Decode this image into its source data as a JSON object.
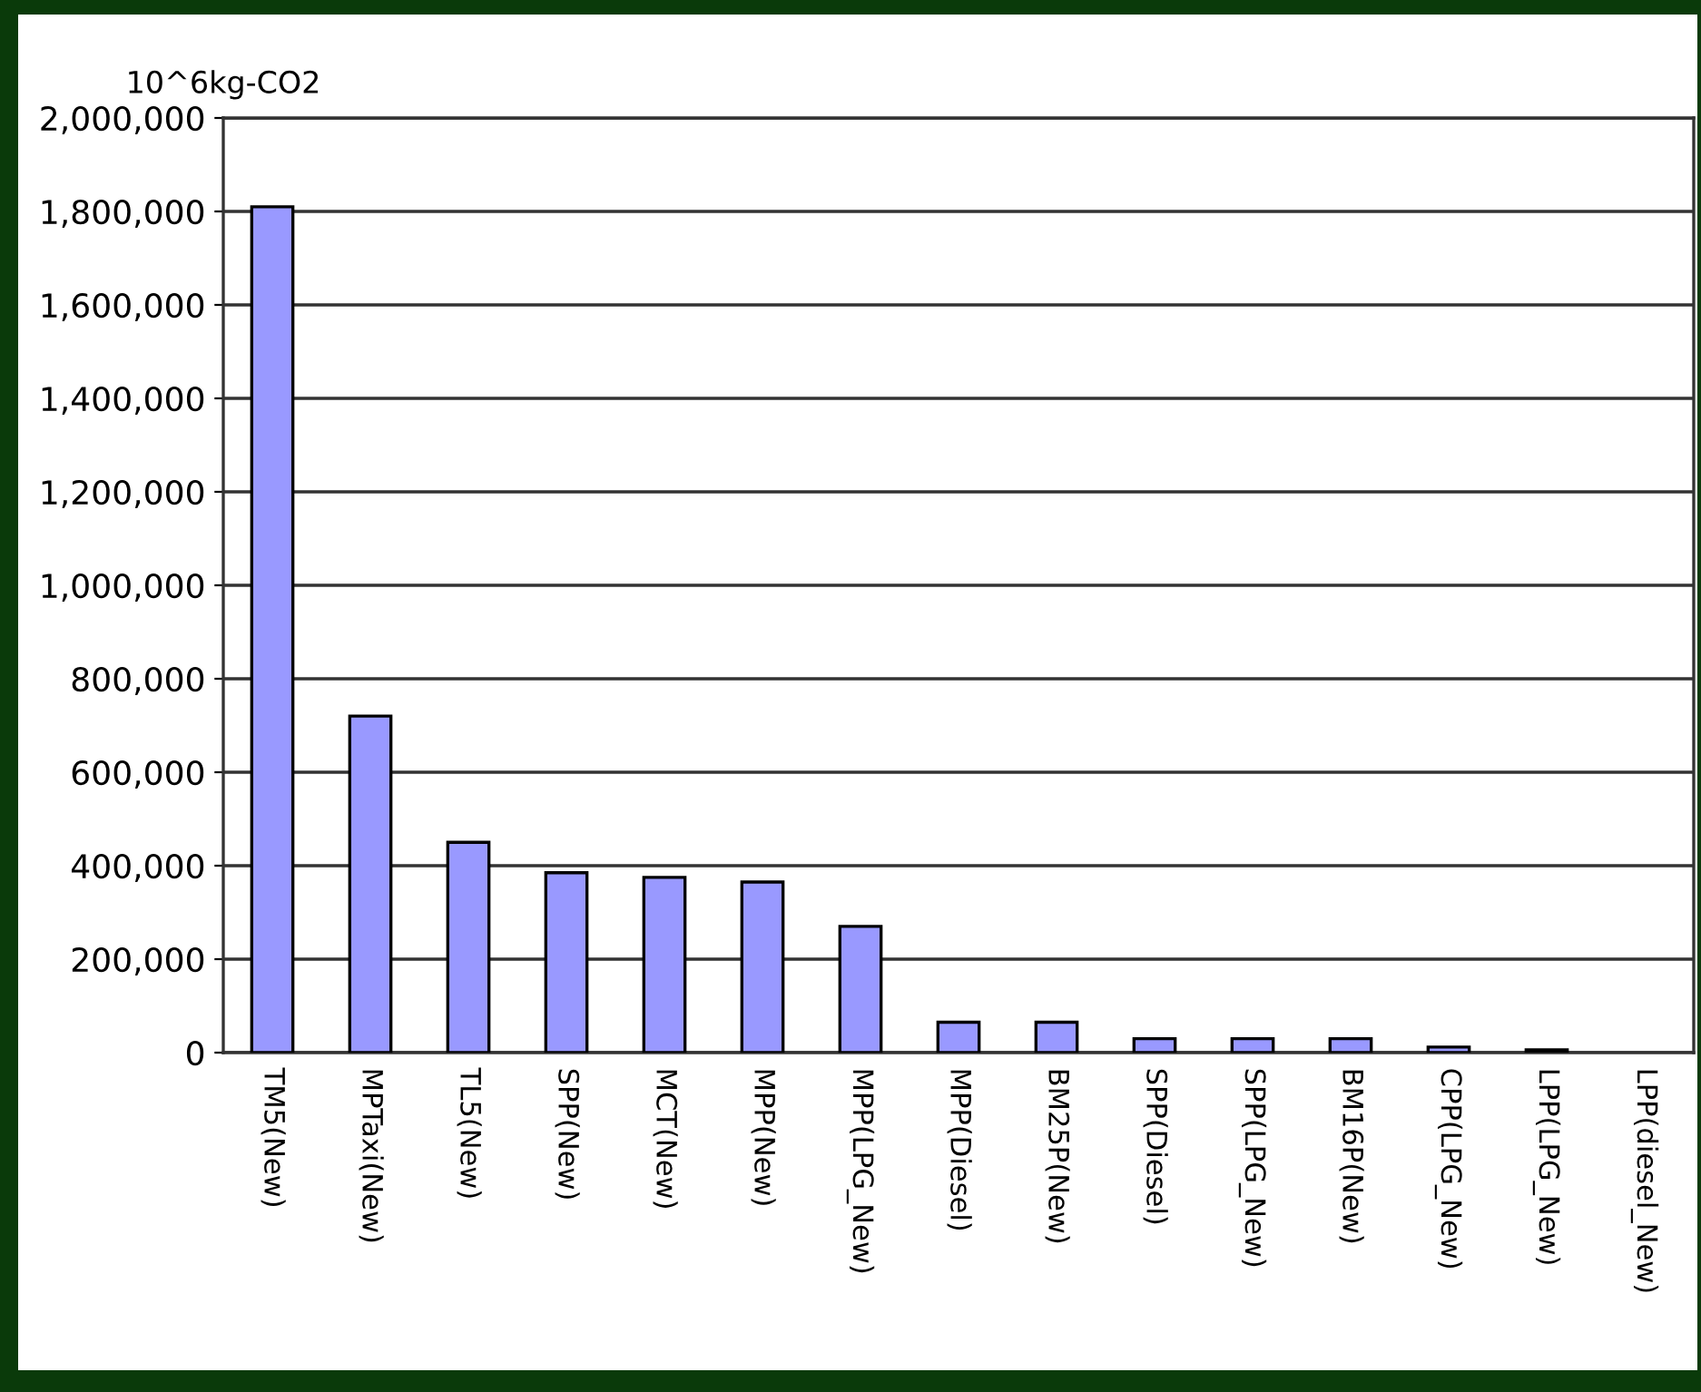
{
  "chart_data": {
    "type": "bar",
    "ylabel": "10^6kg-CO2",
    "categories": [
      "TM5(New)",
      "MPTaxi(New)",
      "TL5(New)",
      "SPP(New)",
      "MCT(New)",
      "MPP(New)",
      "MPP(LPG_New)",
      "MPP(Diesel)",
      "BM25P(New)",
      "SPP(Diesel)",
      "SPP(LPG_New)",
      "BM16P(New)",
      "CPP(LPG_New)",
      "LPP(LPG_New)",
      "LPP(diesel_New)"
    ],
    "values": [
      1810000,
      720000,
      450000,
      385000,
      375000,
      365000,
      270000,
      65000,
      65000,
      30000,
      30000,
      30000,
      12000,
      6000,
      null
    ],
    "color": "#9999ff",
    "ylim": [
      0,
      2000000
    ],
    "yticks": [
      {
        "value": 0,
        "label": "0"
      },
      {
        "value": 200000,
        "label": "200,000"
      },
      {
        "value": 400000,
        "label": "400,000"
      },
      {
        "value": 600000,
        "label": "600,000"
      },
      {
        "value": 800000,
        "label": "800,000"
      },
      {
        "value": 1000000,
        "label": "1,000,000"
      },
      {
        "value": 1200000,
        "label": "1,200,000"
      },
      {
        "value": 1400000,
        "label": "1,400,000"
      },
      {
        "value": 1600000,
        "label": "1,600,000"
      },
      {
        "value": 1800000,
        "label": "1,800,000"
      },
      {
        "value": 2000000,
        "label": "2,000,000"
      }
    ],
    "grid": "y"
  }
}
